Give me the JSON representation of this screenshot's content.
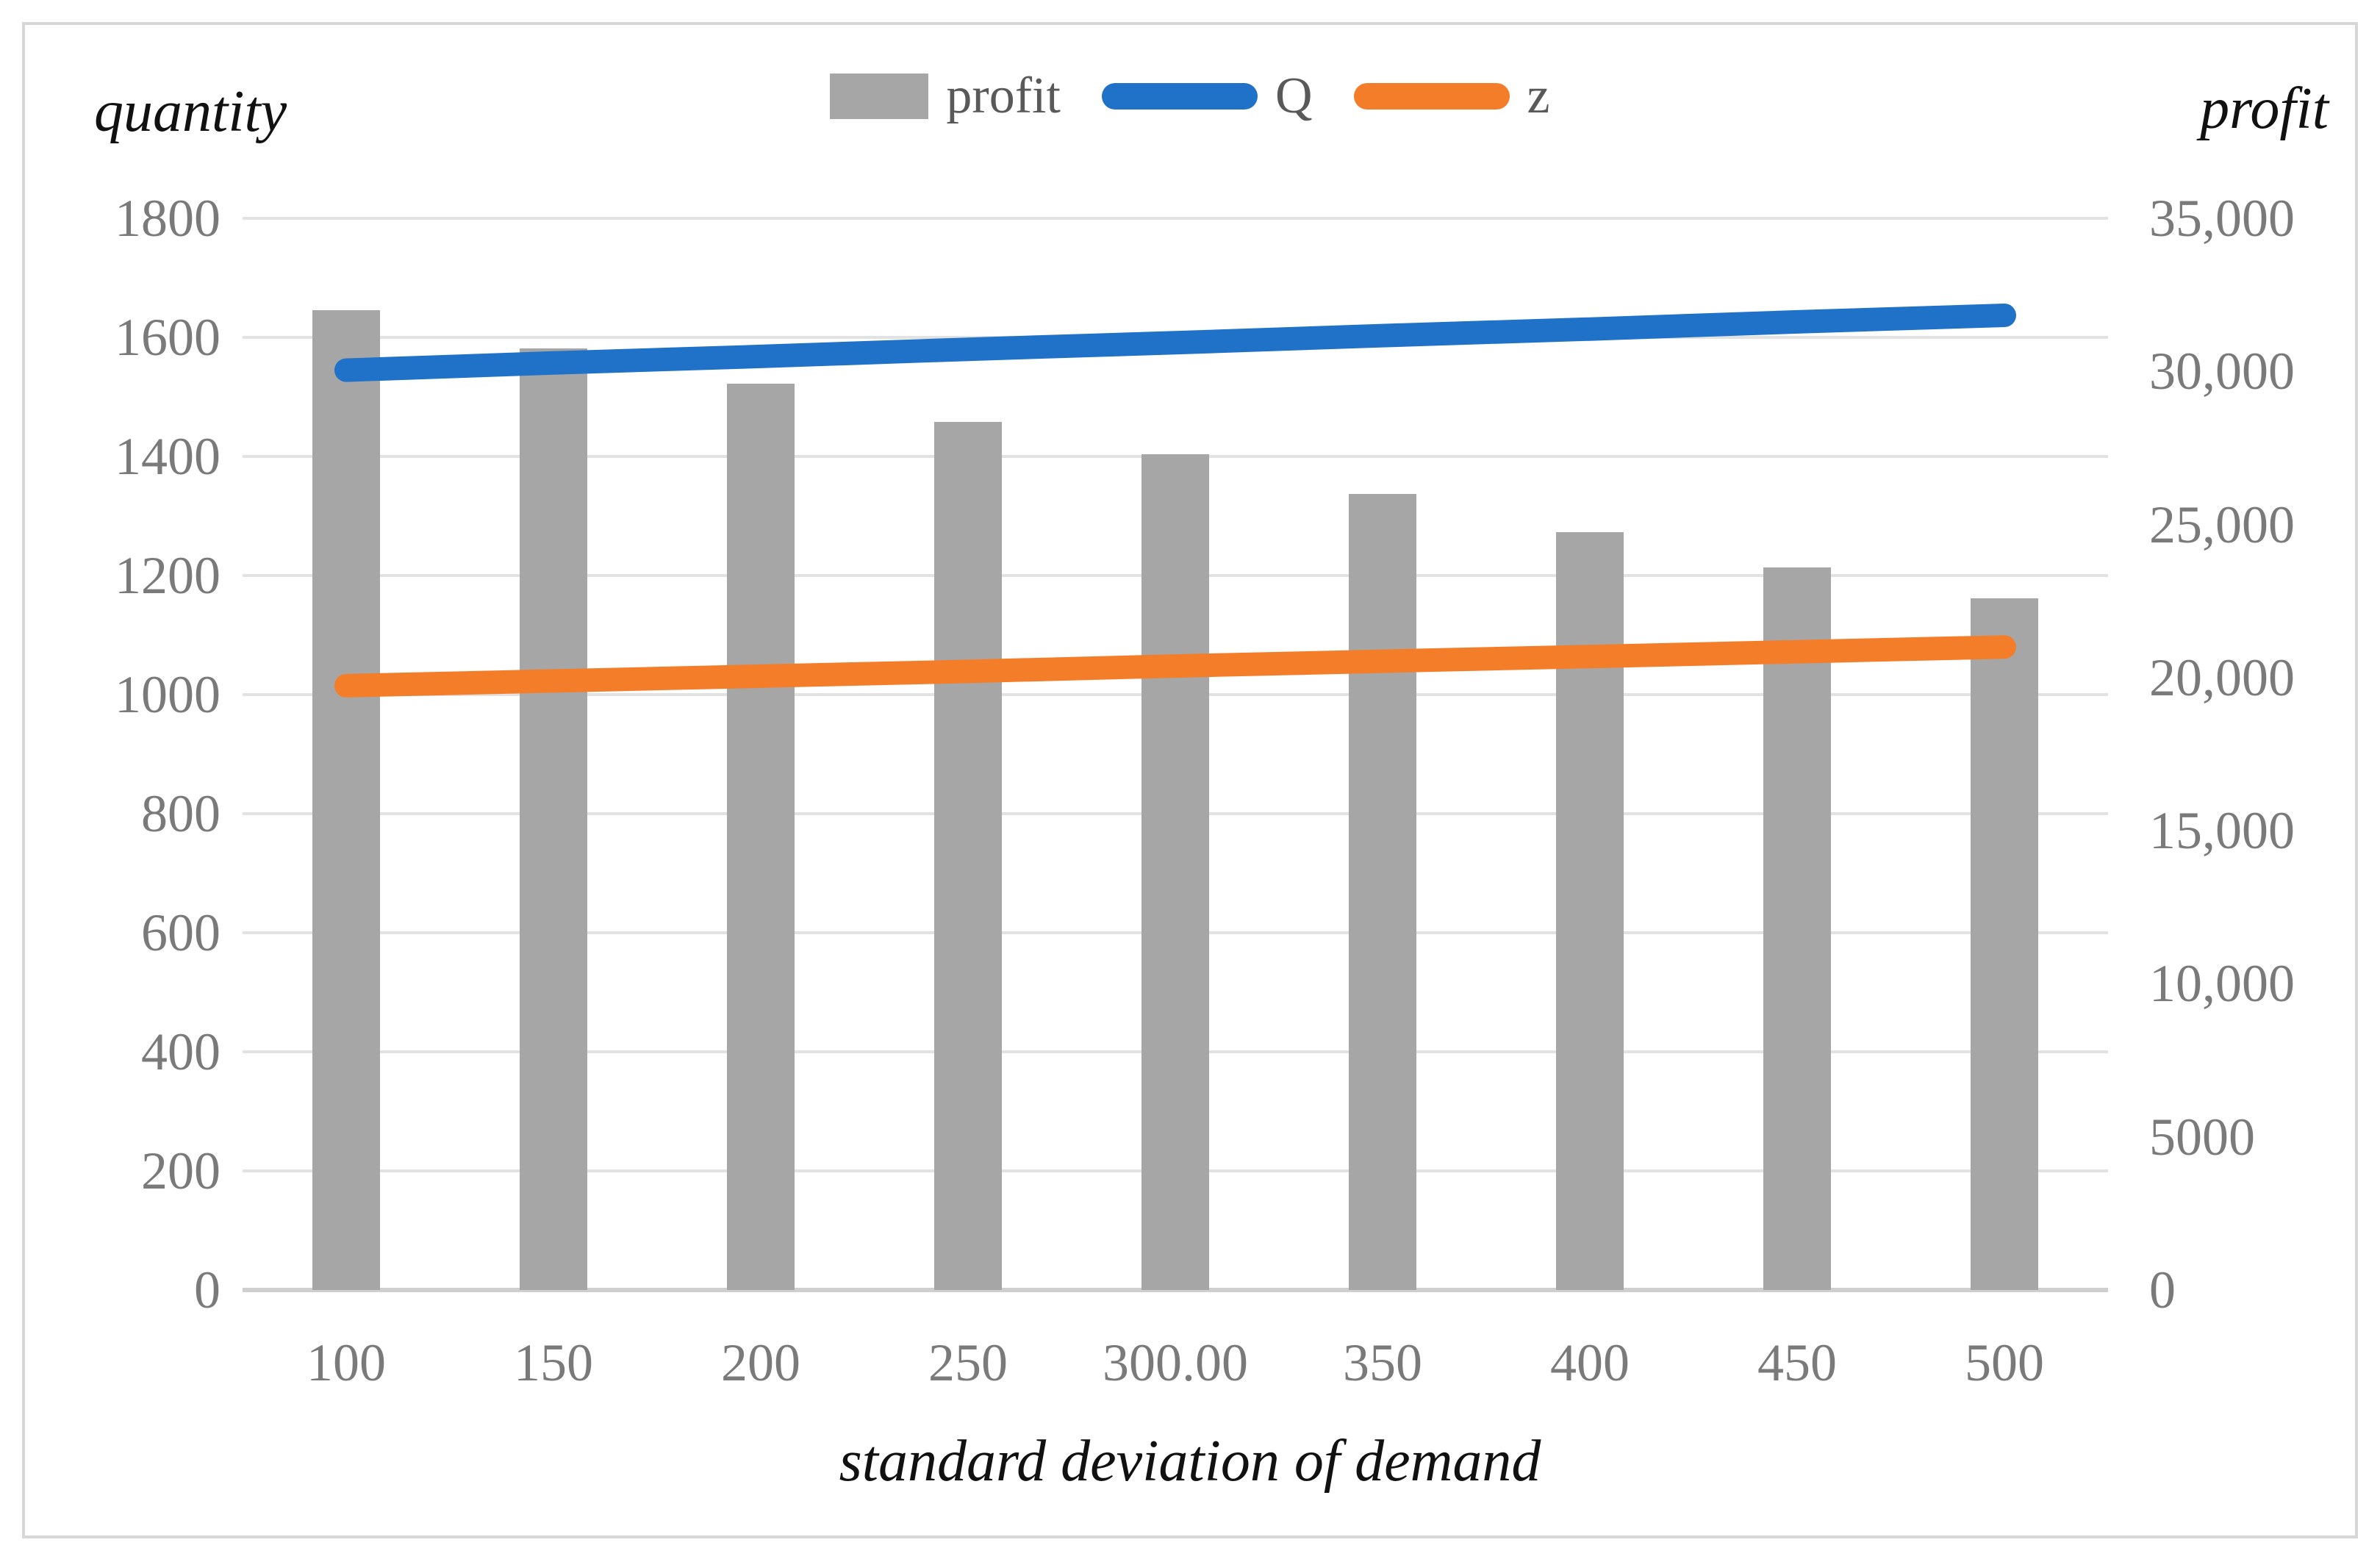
{
  "chart_data": {
    "type": "bar",
    "subtype": "combo-bar-line",
    "title": "",
    "categories": [
      "100",
      "150",
      "200",
      "250",
      "300.00",
      "350",
      "400",
      "450",
      "500"
    ],
    "series": [
      {
        "name": "profit",
        "type": "bar",
        "axis": "right",
        "color": "#a6a6a6",
        "values": [
          32000,
          30750,
          29600,
          28350,
          27300,
          26000,
          24750,
          23600,
          22600
        ]
      },
      {
        "name": "Q",
        "type": "line",
        "axis": "left",
        "color": "#1f72c8",
        "values": [
          1545,
          1557,
          1568,
          1580,
          1591,
          1603,
          1614,
          1626,
          1637
        ]
      },
      {
        "name": "z",
        "type": "line",
        "axis": "left",
        "color": "#f47d29",
        "values": [
          1015,
          1023,
          1031,
          1039,
          1048,
          1056,
          1064,
          1072,
          1080
        ]
      }
    ],
    "left_axis": {
      "title": "quantity",
      "min": 0,
      "max": 1800,
      "step": 200,
      "tick_labels": [
        "0",
        "200",
        "400",
        "600",
        "800",
        "1000",
        "1200",
        "1400",
        "1600",
        "1800"
      ]
    },
    "right_axis": {
      "title": "profit",
      "min": 0,
      "max": 35000,
      "step": 5000,
      "tick_labels": [
        "0",
        "5000",
        "10,000",
        "15,000",
        "20,000",
        "25,000",
        "30,000",
        "35,000"
      ]
    },
    "x_axis": {
      "title": "standard deviation of demand"
    },
    "legend": {
      "position": "top",
      "entries": [
        "profit",
        "Q",
        "z"
      ]
    },
    "grid": true,
    "colors": {
      "bar": "#a6a6a6",
      "line_q": "#1f72c8",
      "line_z": "#f47d29",
      "gridline": "#e2e2e2",
      "axis_line": "#cfcfcf",
      "tick_text": "#7a7a7a",
      "legend_text": "#595959",
      "title_text": "#111111",
      "frame": "#d7d7d7"
    }
  }
}
